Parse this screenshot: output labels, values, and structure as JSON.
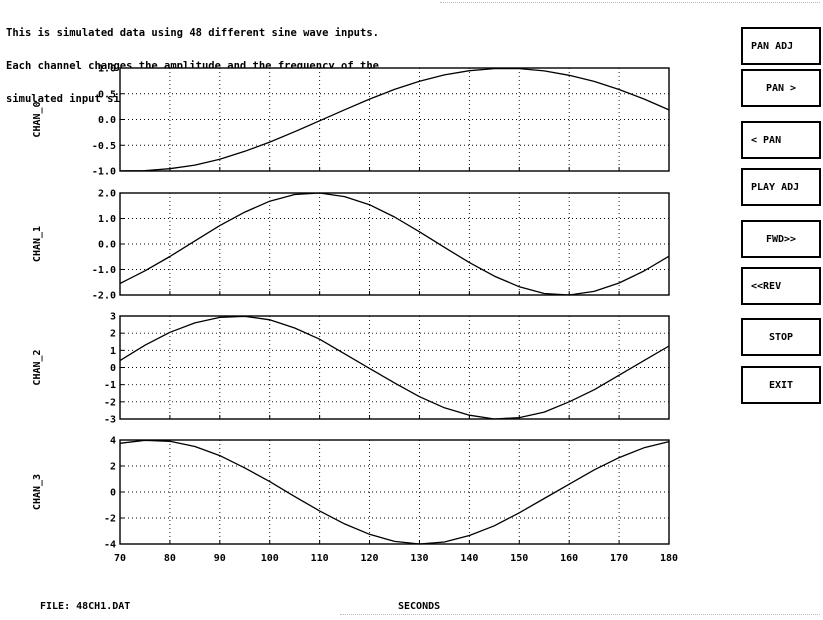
{
  "description": [
    "This is simulated data using 48 different sine wave inputs.",
    "Each channel changes the amplitude and the frequency of the",
    "simulated input signal."
  ],
  "footer": {
    "file": "FILE: 48CH1.DAT",
    "xlabel": "SECONDS"
  },
  "buttons": [
    {
      "label": "PAN ADJ",
      "align": "left"
    },
    {
      "label": "PAN >",
      "align": "center"
    },
    {
      "label": "< PAN",
      "align": "left"
    },
    {
      "label": "PLAY ADJ",
      "align": "left"
    },
    {
      "label": "FWD>>",
      "align": "center"
    },
    {
      "label": "<<REV",
      "align": "left"
    },
    {
      "label": "STOP",
      "align": "center"
    },
    {
      "label": "EXIT",
      "align": "center"
    }
  ],
  "chart_data": [
    {
      "type": "line",
      "ylabel": "CHAN_0",
      "xlim": [
        70,
        180
      ],
      "ylim": [
        -1,
        1
      ],
      "yticks": [
        -1,
        -0.5,
        0,
        0.5,
        1
      ],
      "yticklabels": [
        "-1.0",
        "-0.5",
        "0.0",
        "0.5",
        "1.0"
      ],
      "xticks": [
        70,
        80,
        90,
        100,
        110,
        120,
        130,
        140,
        150,
        160,
        170,
        180
      ],
      "grid": true,
      "x": [
        70,
        75,
        80,
        85,
        90,
        95,
        100,
        105,
        110,
        115,
        120,
        125,
        130,
        135,
        140,
        145,
        150,
        155,
        160,
        165,
        170,
        175,
        180
      ],
      "y": [
        -0.999,
        -0.992,
        -0.955,
        -0.885,
        -0.772,
        -0.618,
        -0.438,
        -0.237,
        -0.025,
        0.189,
        0.397,
        0.584,
        0.743,
        0.866,
        0.948,
        0.989,
        0.988,
        0.944,
        0.859,
        0.74,
        0.582,
        0.398,
        0.187
      ]
    },
    {
      "type": "line",
      "ylabel": "CHAN_1",
      "xlim": [
        70,
        180
      ],
      "ylim": [
        -2,
        2
      ],
      "yticks": [
        -2,
        -1,
        0,
        1,
        2
      ],
      "yticklabels": [
        "-2.0",
        "-1.0",
        "0.0",
        "1.0",
        "2.0"
      ],
      "xticks": [
        70,
        80,
        90,
        100,
        110,
        120,
        130,
        140,
        150,
        160,
        170,
        180
      ],
      "grid": true,
      "x": [
        70,
        75,
        80,
        85,
        90,
        95,
        100,
        105,
        110,
        115,
        120,
        125,
        130,
        135,
        140,
        145,
        150,
        155,
        160,
        165,
        170,
        175,
        180
      ],
      "y": [
        -1.55,
        -1.05,
        -0.49,
        0.12,
        0.72,
        1.25,
        1.68,
        1.94,
        2.0,
        1.86,
        1.54,
        1.06,
        0.48,
        -0.13,
        -0.73,
        -1.26,
        -1.68,
        -1.94,
        -2.0,
        -1.86,
        -1.53,
        -1.06,
        -0.48
      ]
    },
    {
      "type": "line",
      "ylabel": "CHAN_2",
      "xlim": [
        70,
        180
      ],
      "ylim": [
        -3,
        3
      ],
      "yticks": [
        -3,
        -2,
        -1,
        0,
        1,
        2,
        3
      ],
      "yticklabels": [
        "-3",
        "-2",
        "-1",
        "0",
        "1",
        "2",
        "3"
      ],
      "xticks": [
        70,
        80,
        90,
        100,
        110,
        120,
        130,
        140,
        150,
        160,
        170,
        180
      ],
      "grid": true,
      "x": [
        70,
        75,
        80,
        85,
        90,
        95,
        100,
        105,
        110,
        115,
        120,
        125,
        130,
        135,
        140,
        145,
        150,
        155,
        160,
        165,
        170,
        175,
        180
      ],
      "y": [
        0.4,
        1.3,
        2.05,
        2.6,
        2.92,
        2.98,
        2.78,
        2.3,
        1.65,
        0.8,
        -0.05,
        -0.9,
        -1.7,
        -2.35,
        -2.78,
        -3.0,
        -2.92,
        -2.6,
        -2.0,
        -1.3,
        -0.45,
        0.4,
        1.25
      ]
    },
    {
      "type": "line",
      "ylabel": "CHAN_3",
      "xlim": [
        70,
        180
      ],
      "ylim": [
        -4,
        4
      ],
      "yticks": [
        -4,
        -2,
        0,
        2,
        4
      ],
      "yticklabels": [
        "-4",
        "-2",
        "0",
        "2",
        "4"
      ],
      "xticks": [
        70,
        80,
        90,
        100,
        110,
        120,
        130,
        140,
        150,
        160,
        170,
        180
      ],
      "xticklabels": [
        "70",
        "80",
        "90",
        "100",
        "110",
        "120",
        "130",
        "140",
        "150",
        "160",
        "170",
        "180"
      ],
      "grid": true,
      "x": [
        70,
        75,
        80,
        85,
        90,
        95,
        100,
        105,
        110,
        115,
        120,
        125,
        130,
        135,
        140,
        145,
        150,
        155,
        160,
        165,
        170,
        175,
        180
      ],
      "y": [
        3.75,
        3.98,
        3.9,
        3.5,
        2.8,
        1.85,
        0.8,
        -0.35,
        -1.45,
        -2.45,
        -3.25,
        -3.8,
        -4.0,
        -3.85,
        -3.35,
        -2.6,
        -1.6,
        -0.5,
        0.6,
        1.7,
        2.65,
        3.4,
        3.88
      ]
    }
  ]
}
